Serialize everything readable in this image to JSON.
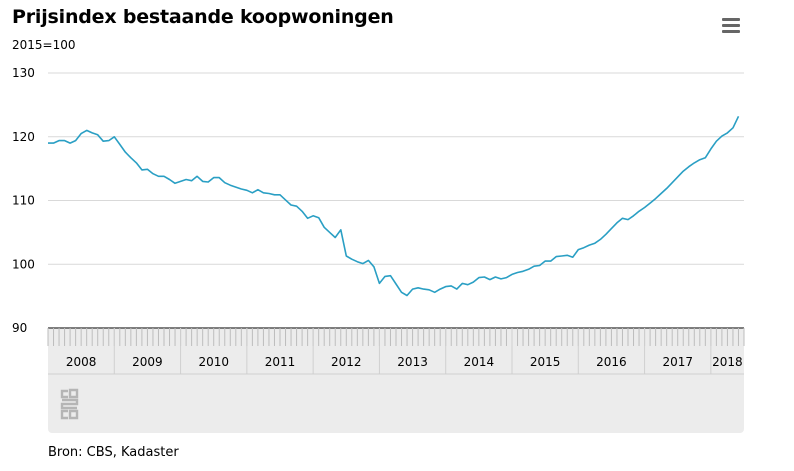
{
  "header": {
    "title": "Prijsindex bestaande koopwoningen",
    "unit_label": "2015=100",
    "menu_icon": "hamburger-menu-icon"
  },
  "footer": {
    "source": "Bron: CBS, Kadaster",
    "logo_icon": "cbs-logo-icon"
  },
  "colors": {
    "line": "#2a9fc4",
    "grid": "#d9d9d9",
    "navigator_bg": "#ececec"
  },
  "chart_data": {
    "type": "line",
    "title": "Prijsindex bestaande koopwoningen",
    "ylabel": "2015=100",
    "xlabel": "",
    "ylim": [
      90,
      130
    ],
    "yticks": [
      90,
      100,
      110,
      120,
      130
    ],
    "xlim": [
      "2008-01",
      "2018-07"
    ],
    "xticks": [
      "2008",
      "2009",
      "2010",
      "2011",
      "2012",
      "2013",
      "2014",
      "2015",
      "2016",
      "2017",
      "2018"
    ],
    "grid": true,
    "series": [
      {
        "x": [
          "2008-01",
          "2008-02",
          "2008-03",
          "2008-04",
          "2008-05",
          "2008-06",
          "2008-07",
          "2008-08",
          "2008-09",
          "2008-10",
          "2008-11",
          "2008-12",
          "2009-01",
          "2009-02",
          "2009-03",
          "2009-04",
          "2009-05",
          "2009-06",
          "2009-07",
          "2009-08",
          "2009-09",
          "2009-10",
          "2009-11",
          "2009-12",
          "2010-01",
          "2010-02",
          "2010-03",
          "2010-04",
          "2010-05",
          "2010-06",
          "2010-07",
          "2010-08",
          "2010-09",
          "2010-10",
          "2010-11",
          "2010-12",
          "2011-01",
          "2011-02",
          "2011-03",
          "2011-04",
          "2011-05",
          "2011-06",
          "2011-07",
          "2011-08",
          "2011-09",
          "2011-10",
          "2011-11",
          "2011-12",
          "2012-01",
          "2012-02",
          "2012-03",
          "2012-04",
          "2012-05",
          "2012-06",
          "2012-07",
          "2012-08",
          "2012-09",
          "2012-10",
          "2012-11",
          "2012-12",
          "2013-01",
          "2013-02",
          "2013-03",
          "2013-04",
          "2013-05",
          "2013-06",
          "2013-07",
          "2013-08",
          "2013-09",
          "2013-10",
          "2013-11",
          "2013-12",
          "2014-01",
          "2014-02",
          "2014-03",
          "2014-04",
          "2014-05",
          "2014-06",
          "2014-07",
          "2014-08",
          "2014-09",
          "2014-10",
          "2014-11",
          "2014-12",
          "2015-01",
          "2015-02",
          "2015-03",
          "2015-04",
          "2015-05",
          "2015-06",
          "2015-07",
          "2015-08",
          "2015-09",
          "2015-10",
          "2015-11",
          "2015-12",
          "2016-01",
          "2016-02",
          "2016-03",
          "2016-04",
          "2016-05",
          "2016-06",
          "2016-07",
          "2016-08",
          "2016-09",
          "2016-10",
          "2016-11",
          "2016-12",
          "2017-01",
          "2017-02",
          "2017-03",
          "2017-04",
          "2017-05",
          "2017-06",
          "2017-07",
          "2017-08",
          "2017-09",
          "2017-10",
          "2017-11",
          "2017-12",
          "2018-01",
          "2018-02",
          "2018-03",
          "2018-04",
          "2018-05",
          "2018-06"
        ],
        "values": [
          119.0,
          119.0,
          119.4,
          119.4,
          119.0,
          119.4,
          120.5,
          121.0,
          120.6,
          120.3,
          119.3,
          119.4,
          120.0,
          118.8,
          117.6,
          116.7,
          115.9,
          114.8,
          114.9,
          114.2,
          113.8,
          113.8,
          113.3,
          112.7,
          113.0,
          113.3,
          113.1,
          113.8,
          113.0,
          112.9,
          113.6,
          113.6,
          112.8,
          112.4,
          112.1,
          111.8,
          111.6,
          111.2,
          111.7,
          111.2,
          111.1,
          110.9,
          110.9,
          110.1,
          109.3,
          109.1,
          108.3,
          107.2,
          107.6,
          107.3,
          105.8,
          105.0,
          104.2,
          105.4,
          101.3,
          100.8,
          100.4,
          100.1,
          100.6,
          99.6,
          97.0,
          98.1,
          98.2,
          96.9,
          95.6,
          95.1,
          96.1,
          96.3,
          96.1,
          96.0,
          95.6,
          96.1,
          96.5,
          96.6,
          96.1,
          97.0,
          96.8,
          97.2,
          97.9,
          98.0,
          97.6,
          98.0,
          97.7,
          97.9,
          98.4,
          98.7,
          98.9,
          99.2,
          99.7,
          99.8,
          100.5,
          100.5,
          101.2,
          101.3,
          101.4,
          101.1,
          102.3,
          102.6,
          103.0,
          103.3,
          103.9,
          104.7,
          105.6,
          106.5,
          107.2,
          107.0,
          107.6,
          108.3,
          108.9,
          109.6,
          110.3,
          111.1,
          111.9,
          112.8,
          113.7,
          114.6,
          115.3,
          115.9,
          116.4,
          116.7,
          118.1,
          119.3,
          120.1,
          120.6,
          121.4,
          123.2
        ]
      }
    ]
  }
}
